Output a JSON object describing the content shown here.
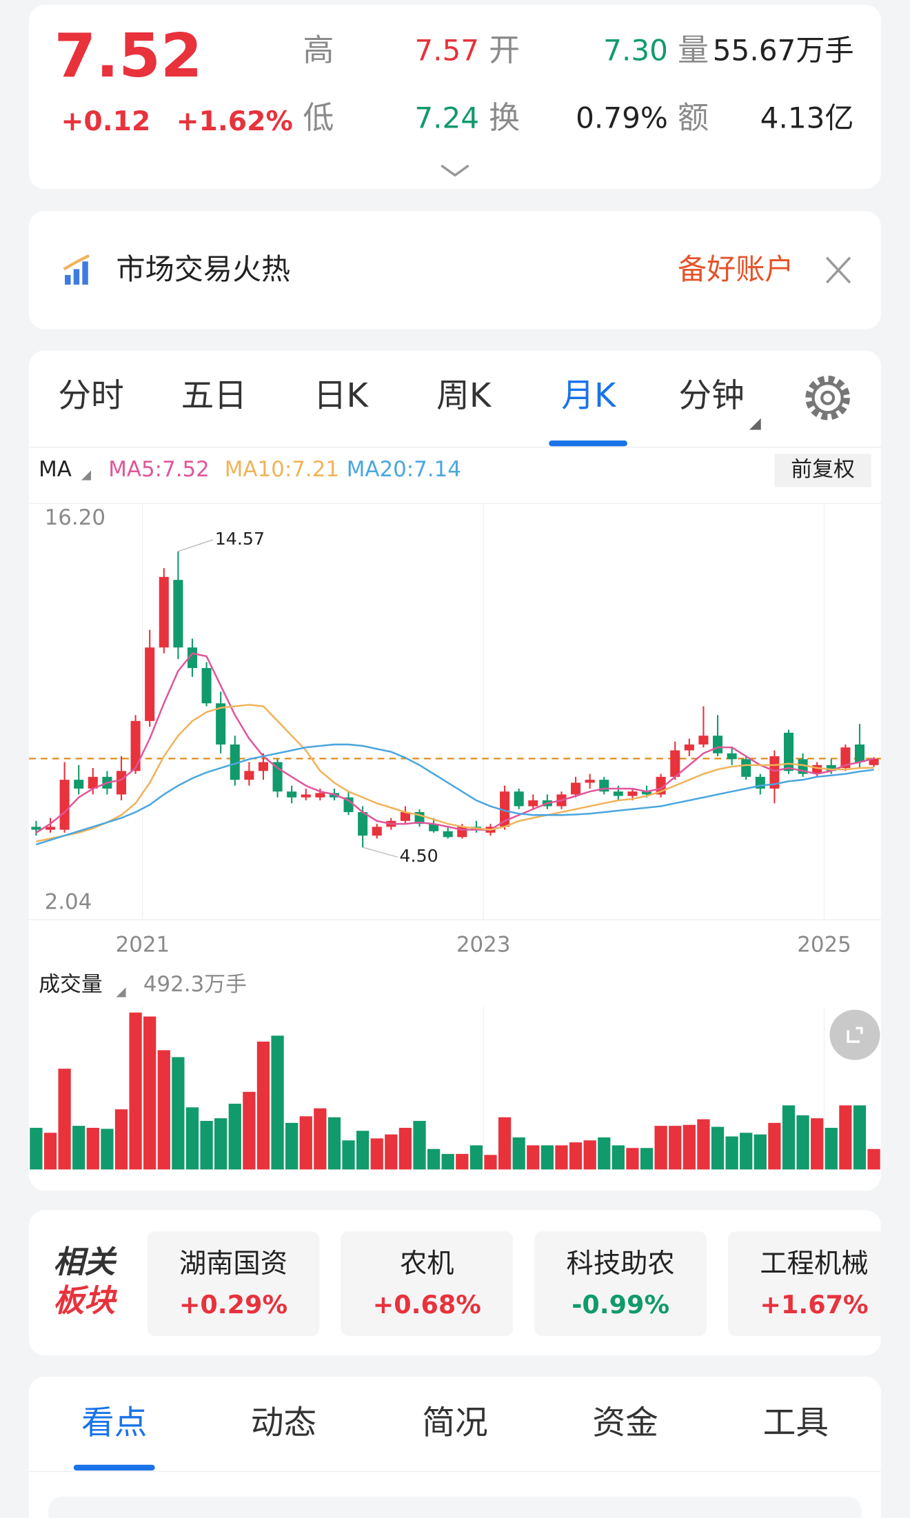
{
  "quote": {
    "price": "7.52",
    "change": "+0.12",
    "change_pct": "+1.62%",
    "fields": [
      {
        "label": "高",
        "value": "7.57"
      },
      {
        "label": "开",
        "value": "7.30"
      },
      {
        "label": "量",
        "value": "55.67万手"
      },
      {
        "label": "低",
        "value": "7.24"
      },
      {
        "label": "换",
        "value": "0.79%"
      },
      {
        "label": "额",
        "value": "4.13亿"
      }
    ]
  },
  "banner": {
    "text": "市场交易火热",
    "action": "备好账户"
  },
  "period_tabs": [
    "分时",
    "五日",
    "日K",
    "周K",
    "月K",
    "分钟"
  ],
  "indicator": "MA",
  "adjust": "前复权",
  "chart_data": [
    {
      "type": "candlestick",
      "categories": [
        null,
        null,
        null,
        null,
        null,
        null,
        null,
        "2021",
        null,
        null,
        null,
        null,
        null,
        null,
        null,
        null,
        null,
        null,
        null,
        null,
        null,
        null,
        null,
        null,
        null,
        null,
        null,
        null,
        null,
        null,
        null,
        "2023",
        null,
        null,
        null,
        null,
        null,
        null,
        null,
        null,
        null,
        null,
        null,
        null,
        null,
        null,
        null,
        null,
        null,
        null,
        null,
        null,
        null,
        null,
        null,
        "2025",
        null,
        null,
        null,
        null
      ],
      "open": [
        5.2,
        5.1,
        5.1,
        6.8,
        6.5,
        6.9,
        6.3,
        7.1,
        8.8,
        11.3,
        13.6,
        11.3,
        10.6,
        9.4,
        8.0,
        6.8,
        7.1,
        7.4,
        6.4,
        6.2,
        6.2,
        6.35,
        6.2,
        5.7,
        4.9,
        5.2,
        5.4,
        5.7,
        5.3,
        5.05,
        4.85,
        5.2,
        5.0,
        5.2,
        6.4,
        5.9,
        6.1,
        5.9,
        6.3,
        6.7,
        6.8,
        6.4,
        6.25,
        6.4,
        6.3,
        6.9,
        7.8,
        8.0,
        8.3,
        7.7,
        7.5,
        6.9,
        6.5,
        8.4,
        7.5,
        7.0,
        7.3,
        7.2,
        8.0,
        7.3
      ],
      "high": [
        5.4,
        5.5,
        7.4,
        7.3,
        7.2,
        7.1,
        7.6,
        9.0,
        11.9,
        14.0,
        14.57,
        11.6,
        10.8,
        9.8,
        8.3,
        7.4,
        7.7,
        7.5,
        6.6,
        6.5,
        6.5,
        6.5,
        6.4,
        5.9,
        5.3,
        5.5,
        5.9,
        5.8,
        5.5,
        5.2,
        5.3,
        5.4,
        5.3,
        6.6,
        6.5,
        6.3,
        6.3,
        6.4,
        6.9,
        7.0,
        6.9,
        6.6,
        6.5,
        6.6,
        7.0,
        8.1,
        8.2,
        9.3,
        9.0,
        7.9,
        7.6,
        7.0,
        7.8,
        8.5,
        7.7,
        7.4,
        7.5,
        8.0,
        8.7,
        7.57
      ],
      "low": [
        4.9,
        5.0,
        5.0,
        6.3,
        6.3,
        6.3,
        6.1,
        7.0,
        8.6,
        11.1,
        10.9,
        10.3,
        9.3,
        7.7,
        6.6,
        6.6,
        6.8,
        6.2,
        6.0,
        6.1,
        6.1,
        6.1,
        5.6,
        4.5,
        4.8,
        5.1,
        5.3,
        5.2,
        5.0,
        4.8,
        4.8,
        5.0,
        4.9,
        5.1,
        5.8,
        5.8,
        5.8,
        5.8,
        6.2,
        6.5,
        6.3,
        6.1,
        6.1,
        6.2,
        6.2,
        6.8,
        7.6,
        7.9,
        7.6,
        7.3,
        6.8,
        6.3,
        6.0,
        7.0,
        6.9,
        6.9,
        7.0,
        7.1,
        7.2,
        7.24
      ],
      "close": [
        5.1,
        5.2,
        6.8,
        6.5,
        6.9,
        6.5,
        7.1,
        8.8,
        11.3,
        13.7,
        11.3,
        10.6,
        9.4,
        8.0,
        6.8,
        7.1,
        7.4,
        6.4,
        6.2,
        6.3,
        6.35,
        6.2,
        5.7,
        4.9,
        5.2,
        5.4,
        5.7,
        5.3,
        5.05,
        4.85,
        5.2,
        5.1,
        5.2,
        6.4,
        5.9,
        6.1,
        5.9,
        6.3,
        6.7,
        6.8,
        6.4,
        6.25,
        6.4,
        6.3,
        6.9,
        7.8,
        8.0,
        8.3,
        7.7,
        7.5,
        6.9,
        6.5,
        7.6,
        7.1,
        7.0,
        7.3,
        7.1,
        7.9,
        7.4,
        7.52
      ],
      "up_color": "#e8323c",
      "down_color": "#119a6c",
      "ylim": [
        2.04,
        16.2
      ],
      "yticks": [
        {
          "value": 16.2,
          "label": "16.20"
        },
        {
          "value": 2.04,
          "label": "2.04"
        }
      ],
      "grid": true,
      "series": [
        {
          "name": "MA5:7.52",
          "color": "#e0569a",
          "values": [
            5.0,
            5.3,
            5.7,
            6.2,
            6.5,
            6.7,
            6.8,
            7.2,
            8.2,
            9.4,
            10.5,
            11.1,
            11.0,
            10.0,
            9.0,
            8.2,
            7.6,
            7.2,
            6.9,
            6.6,
            6.4,
            6.3,
            6.1,
            5.7,
            5.4,
            5.3,
            5.3,
            5.35,
            5.3,
            5.2,
            5.1,
            5.1,
            5.1,
            5.4,
            5.6,
            5.8,
            6.0,
            6.1,
            6.25,
            6.4,
            6.5,
            6.5,
            6.5,
            6.4,
            6.5,
            6.9,
            7.3,
            7.7,
            7.9,
            7.9,
            7.6,
            7.3,
            7.1,
            7.2,
            7.1,
            7.0,
            7.1,
            7.3,
            7.4,
            7.52
          ]
        },
        {
          "name": "MA10:7.21",
          "color": "#f0b35a",
          "values": [
            4.7,
            4.8,
            4.9,
            5.0,
            5.15,
            5.35,
            5.6,
            6.0,
            6.7,
            7.6,
            8.3,
            8.8,
            9.1,
            9.25,
            9.3,
            9.35,
            9.3,
            8.8,
            8.3,
            7.8,
            7.1,
            6.7,
            6.4,
            6.2,
            6.0,
            5.85,
            5.7,
            5.6,
            5.45,
            5.3,
            5.2,
            5.15,
            5.1,
            5.2,
            5.4,
            5.5,
            5.6,
            5.7,
            5.8,
            5.9,
            6.0,
            6.1,
            6.15,
            6.25,
            6.4,
            6.6,
            6.8,
            7.0,
            7.15,
            7.25,
            7.3,
            7.3,
            7.3,
            7.35,
            7.3,
            7.2,
            7.15,
            7.15,
            7.2,
            7.21
          ]
        },
        {
          "name": "MA20:7.14",
          "color": "#4ba6df",
          "values": [
            4.6,
            4.75,
            4.9,
            5.05,
            5.2,
            5.35,
            5.5,
            5.7,
            5.95,
            6.3,
            6.6,
            6.85,
            7.05,
            7.2,
            7.35,
            7.5,
            7.6,
            7.7,
            7.8,
            7.9,
            7.95,
            8.0,
            8.0,
            7.95,
            7.85,
            7.75,
            7.55,
            7.3,
            7.0,
            6.7,
            6.4,
            6.1,
            5.9,
            5.75,
            5.65,
            5.6,
            5.6,
            5.6,
            5.62,
            5.65,
            5.7,
            5.75,
            5.8,
            5.85,
            5.9,
            6.0,
            6.1,
            6.2,
            6.3,
            6.4,
            6.5,
            6.6,
            6.65,
            6.75,
            6.8,
            6.9,
            6.95,
            7.0,
            7.08,
            7.14
          ]
        }
      ],
      "annotations": [
        {
          "value": 14.57,
          "label": "14.57"
        },
        {
          "value": 4.5,
          "label": "4.50"
        }
      ]
    },
    {
      "type": "bar",
      "title": "成交量",
      "values": [
        126,
        111,
        305,
        132,
        126,
        123,
        182,
        475,
        463,
        361,
        340,
        188,
        147,
        155,
        199,
        235,
        387,
        405,
        141,
        161,
        185,
        158,
        88,
        117,
        94,
        106,
        126,
        147,
        62,
        47,
        47,
        73,
        44,
        158,
        97,
        73,
        73,
        73,
        82,
        88,
        97,
        73,
        65,
        65,
        132,
        132,
        135,
        152,
        129,
        100,
        111,
        106,
        141,
        194,
        164,
        155,
        126,
        194,
        194,
        62
      ],
      "ylim": [
        0,
        492.3
      ],
      "yticks": [
        {
          "value": 492.3,
          "label": "492.3万手"
        }
      ]
    }
  ],
  "sectors": {
    "title_lines": [
      "相关",
      "板块"
    ],
    "items": [
      {
        "name": "湖南国资",
        "change": "+0.29%"
      },
      {
        "name": "农机",
        "change": "+0.68%"
      },
      {
        "name": "科技助农",
        "change": "-0.99%"
      },
      {
        "name": "工程机械",
        "change": "+1.67%"
      }
    ]
  },
  "detail_tabs": [
    "看点",
    "动态",
    "简况",
    "资金",
    "工具"
  ]
}
